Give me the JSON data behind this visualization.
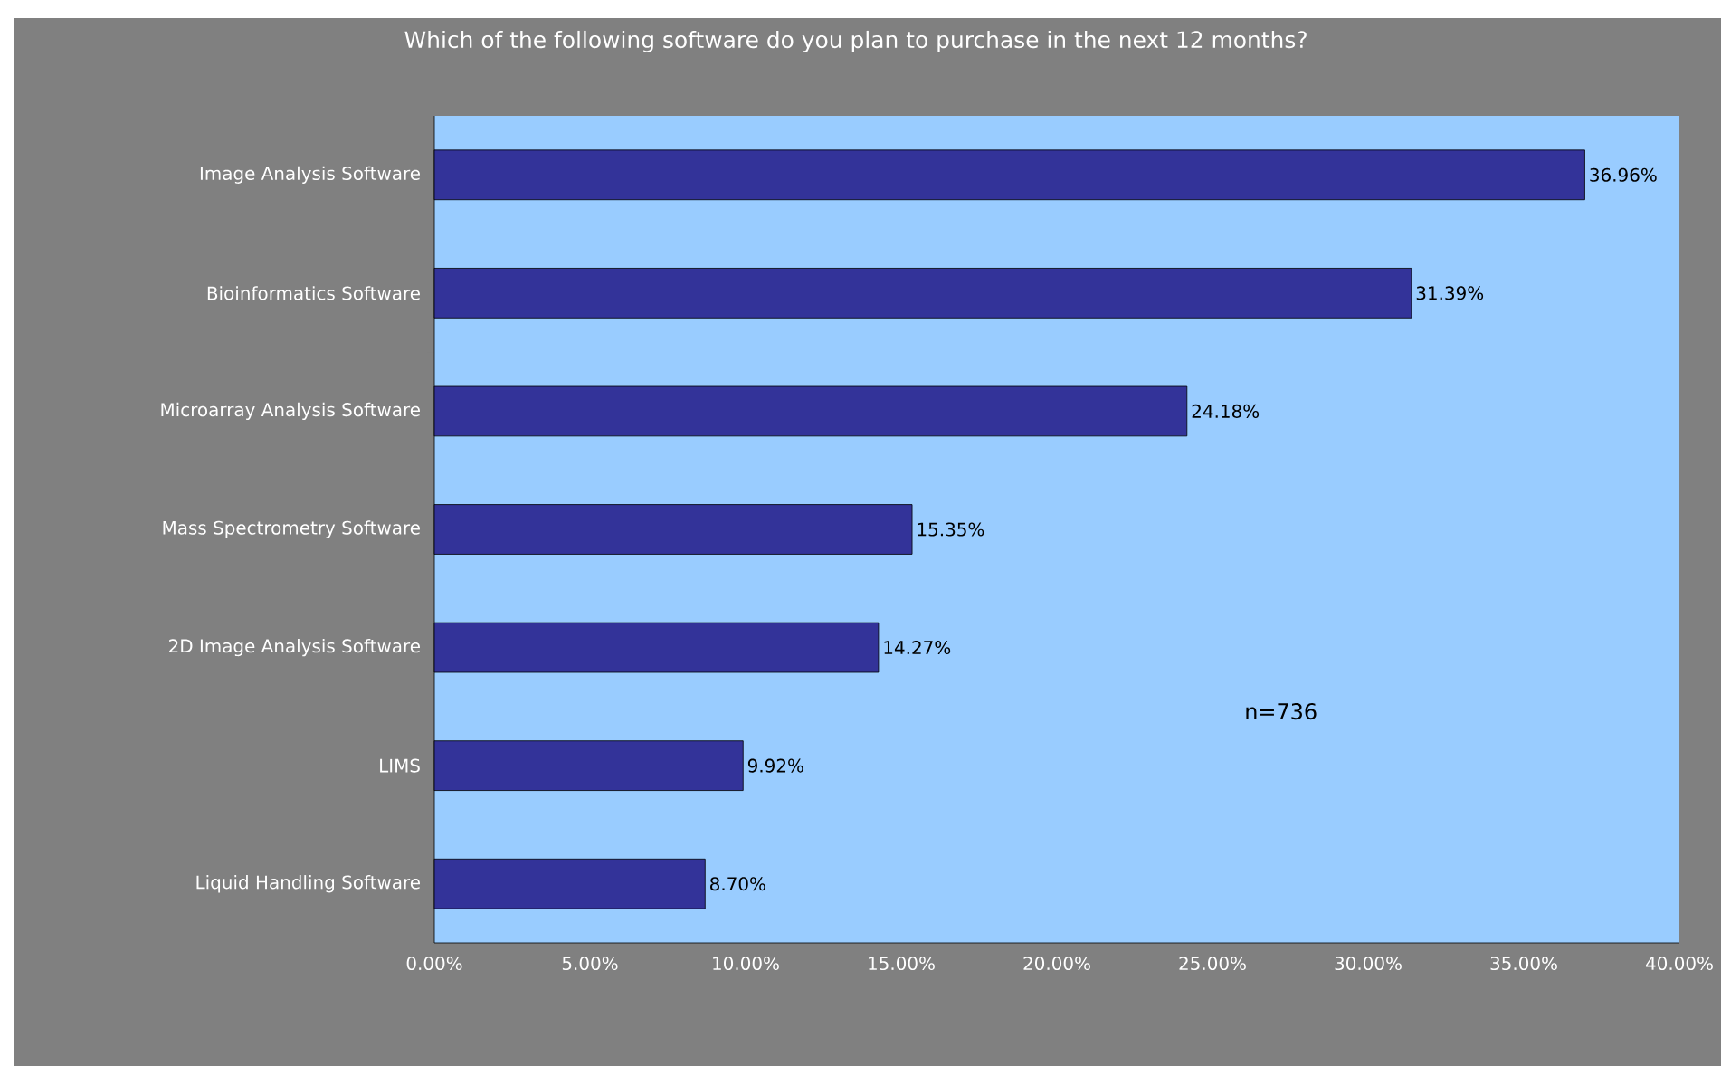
{
  "chart_data": {
    "type": "bar",
    "orientation": "horizontal",
    "title": "Which of the following software do you plan to purchase in the next 12 months?",
    "categories": [
      "Image Analysis Software",
      "Bioinformatics Software",
      "Microarray Analysis Software",
      "Mass Spectrometry Software",
      "2D Image Analysis Software",
      "LIMS",
      "Liquid Handling Software"
    ],
    "values": [
      36.96,
      31.39,
      24.18,
      15.35,
      14.27,
      9.92,
      8.7
    ],
    "value_labels": [
      "36.96%",
      "31.39%",
      "24.18%",
      "15.35%",
      "14.27%",
      "9.92%",
      "8.70%"
    ],
    "color": "#333399",
    "xlim": [
      0,
      40
    ],
    "xticks": [
      {
        "value": 0,
        "label": "0.00%"
      },
      {
        "value": 5,
        "label": "5.00%"
      },
      {
        "value": 10,
        "label": "10.00%"
      },
      {
        "value": 15,
        "label": "15.00%"
      },
      {
        "value": 20,
        "label": "20.00%"
      },
      {
        "value": 25,
        "label": "25.00%"
      },
      {
        "value": 30,
        "label": "30.00%"
      },
      {
        "value": 35,
        "label": "35.00%"
      },
      {
        "value": 40,
        "label": "40.00%"
      }
    ],
    "annotations": [
      "n=736"
    ]
  }
}
